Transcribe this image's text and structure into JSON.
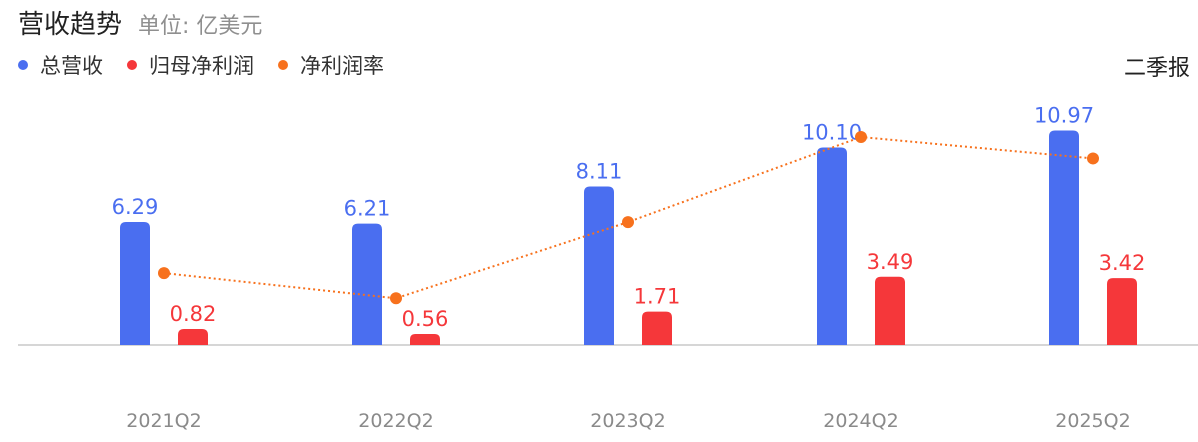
{
  "header": {
    "title": "营收趋势",
    "unit": "单位: 亿美元"
  },
  "period_label": "二季报",
  "colors": {
    "revenue": "#4a6ef0",
    "net_profit": "#f5373a",
    "net_margin": "#f7711d",
    "axis": "#c8c8c8",
    "tick_text": "#8a8a8a"
  },
  "chart_data": {
    "type": "bar",
    "categories": [
      "2021Q2",
      "2022Q2",
      "2023Q2",
      "2024Q2",
      "2025Q2"
    ],
    "series": [
      {
        "name": "总营收",
        "type": "bar",
        "values": [
          6.29,
          6.21,
          8.11,
          10.1,
          10.97
        ],
        "labels": [
          "6.29",
          "6.21",
          "8.11",
          "10.10",
          "10.97"
        ]
      },
      {
        "name": "归母净利润",
        "type": "bar",
        "values": [
          0.82,
          0.56,
          1.71,
          3.49,
          3.42
        ],
        "labels": [
          "0.82",
          "0.56",
          "1.71",
          "3.49",
          "3.42"
        ]
      },
      {
        "name": "净利润率",
        "type": "line",
        "values": [
          13.0,
          9.0,
          21.1,
          34.6,
          31.2
        ]
      }
    ],
    "legend_position": "top-left",
    "grid": false
  }
}
